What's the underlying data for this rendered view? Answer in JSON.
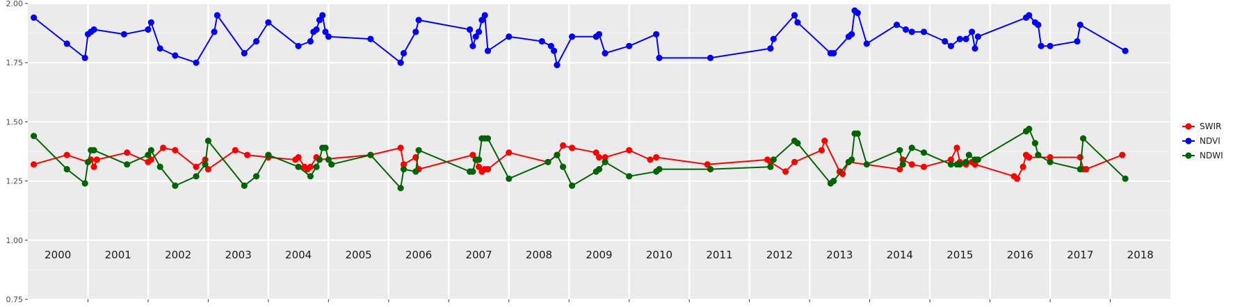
{
  "chart_data": {
    "type": "line",
    "title": "",
    "xlabel": "",
    "ylabel": "",
    "xlim": [
      2000.0,
      2019.0
    ],
    "ylim": [
      0.75,
      2.0
    ],
    "y_ticks": [
      "0.75",
      "1.00",
      "1.25",
      "1.50",
      "1.75",
      "2.00"
    ],
    "year_labels": [
      "2000",
      "2001",
      "2002",
      "2003",
      "2004",
      "2005",
      "2006",
      "2007",
      "2008",
      "2009",
      "2010",
      "2011",
      "2012",
      "2013",
      "2014",
      "2015",
      "2016",
      "2017",
      "2018"
    ],
    "grid": true,
    "legend_position": "right",
    "series": [
      {
        "name": "SWIR",
        "color": "#ff0000",
        "x": [
          2000.1,
          2000.65,
          2001.0,
          2001.05,
          2001.1,
          2001.15,
          2001.65,
          2002.0,
          2002.05,
          2002.25,
          2002.45,
          2002.8,
          2002.95,
          2003.0,
          2003.45,
          2003.65,
          2004.0,
          2004.45,
          2004.5,
          2004.6,
          2004.65,
          2004.7,
          2004.8,
          2004.85,
          2005.7,
          2006.2,
          2006.25,
          2006.45,
          2006.5,
          2007.4,
          2007.45,
          2007.5,
          2007.55,
          2007.6,
          2007.65,
          2008.0,
          2008.65,
          2008.8,
          2008.9,
          2009.05,
          2009.45,
          2009.5,
          2009.6,
          2010.0,
          2010.35,
          2010.45,
          2011.3,
          2012.3,
          2012.35,
          2012.6,
          2012.75,
          2013.2,
          2013.25,
          2013.5,
          2013.55,
          2013.65,
          2014.5,
          2014.55,
          2014.7,
          2014.9,
          2015.35,
          2015.45,
          2015.5,
          2015.6,
          2015.7,
          2015.75,
          2016.4,
          2016.45,
          2016.55,
          2016.6,
          2016.65,
          2017.0,
          2017.5,
          2017.55,
          2017.6,
          2018.2
        ],
        "values": [
          1.32,
          1.36,
          1.33,
          1.34,
          1.31,
          1.34,
          1.37,
          1.33,
          1.34,
          1.39,
          1.38,
          1.31,
          1.34,
          1.3,
          1.38,
          1.36,
          1.35,
          1.34,
          1.35,
          1.31,
          1.3,
          1.31,
          1.35,
          1.34,
          1.36,
          1.39,
          1.32,
          1.35,
          1.3,
          1.36,
          1.34,
          1.31,
          1.29,
          1.3,
          1.3,
          1.37,
          1.33,
          1.36,
          1.4,
          1.39,
          1.37,
          1.35,
          1.35,
          1.38,
          1.34,
          1.35,
          1.32,
          1.34,
          1.33,
          1.29,
          1.33,
          1.38,
          1.42,
          1.29,
          1.28,
          1.33,
          1.3,
          1.34,
          1.32,
          1.31,
          1.34,
          1.39,
          1.33,
          1.32,
          1.33,
          1.32,
          1.27,
          1.26,
          1.31,
          1.36,
          1.35,
          1.35,
          1.35,
          1.3,
          1.3,
          1.36
        ]
      },
      {
        "name": "NDVI",
        "color": "#0000ff",
        "x": [
          2000.1,
          2000.65,
          2000.95,
          2001.0,
          2001.05,
          2001.1,
          2001.6,
          2002.0,
          2002.05,
          2002.2,
          2002.45,
          2002.8,
          2003.1,
          2003.15,
          2003.6,
          2003.8,
          2004.0,
          2004.5,
          2004.7,
          2004.75,
          2004.8,
          2004.85,
          2004.9,
          2004.95,
          2005.0,
          2005.7,
          2006.2,
          2006.25,
          2006.45,
          2006.5,
          2007.35,
          2007.4,
          2007.45,
          2007.5,
          2007.55,
          2007.6,
          2007.65,
          2008.0,
          2008.55,
          2008.7,
          2008.75,
          2008.8,
          2009.05,
          2009.45,
          2009.5,
          2009.6,
          2010.0,
          2010.45,
          2010.5,
          2011.35,
          2012.35,
          2012.4,
          2012.75,
          2012.8,
          2013.35,
          2013.4,
          2013.65,
          2013.7,
          2013.75,
          2013.8,
          2013.95,
          2014.45,
          2014.6,
          2014.7,
          2014.9,
          2015.25,
          2015.35,
          2015.5,
          2015.6,
          2015.7,
          2015.75,
          2015.8,
          2016.6,
          2016.65,
          2016.75,
          2016.8,
          2016.85,
          2017.0,
          2017.45,
          2017.5,
          2018.25
        ],
        "values": [
          1.94,
          1.83,
          1.77,
          1.87,
          1.88,
          1.89,
          1.87,
          1.89,
          1.92,
          1.81,
          1.78,
          1.75,
          1.88,
          1.95,
          1.79,
          1.84,
          1.92,
          1.82,
          1.84,
          1.88,
          1.89,
          1.93,
          1.95,
          1.88,
          1.86,
          1.85,
          1.75,
          1.79,
          1.88,
          1.93,
          1.89,
          1.82,
          1.86,
          1.88,
          1.93,
          1.95,
          1.8,
          1.86,
          1.84,
          1.82,
          1.8,
          1.74,
          1.86,
          1.86,
          1.87,
          1.79,
          1.82,
          1.87,
          1.77,
          1.77,
          1.81,
          1.85,
          1.95,
          1.92,
          1.79,
          1.79,
          1.86,
          1.87,
          1.97,
          1.96,
          1.83,
          1.91,
          1.89,
          1.88,
          1.88,
          1.84,
          1.82,
          1.85,
          1.85,
          1.88,
          1.81,
          1.86,
          1.94,
          1.95,
          1.92,
          1.91,
          1.82,
          1.82,
          1.84,
          1.91,
          1.8
        ]
      },
      {
        "name": "NDWI",
        "color": "#006400",
        "x": [
          2000.1,
          2000.65,
          2000.95,
          2001.0,
          2001.05,
          2001.1,
          2001.65,
          2002.0,
          2002.05,
          2002.2,
          2002.45,
          2002.8,
          2002.95,
          2003.0,
          2003.6,
          2003.8,
          2004.0,
          2004.5,
          2004.7,
          2004.8,
          2004.85,
          2004.9,
          2004.95,
          2005.0,
          2005.05,
          2005.7,
          2006.2,
          2006.25,
          2006.45,
          2006.5,
          2007.35,
          2007.4,
          2007.45,
          2007.5,
          2007.55,
          2007.6,
          2007.65,
          2008.0,
          2008.65,
          2008.8,
          2008.9,
          2009.05,
          2009.45,
          2009.5,
          2009.6,
          2010.0,
          2010.45,
          2010.5,
          2011.35,
          2012.35,
          2012.4,
          2012.75,
          2012.8,
          2013.35,
          2013.4,
          2013.65,
          2013.7,
          2013.75,
          2013.8,
          2013.95,
          2014.5,
          2014.55,
          2014.7,
          2014.9,
          2015.35,
          2015.45,
          2015.5,
          2015.6,
          2015.65,
          2015.75,
          2015.8,
          2016.6,
          2016.65,
          2016.75,
          2016.8,
          2017.0,
          2017.5,
          2017.55,
          2018.25
        ],
        "values": [
          1.44,
          1.3,
          1.24,
          1.33,
          1.38,
          1.38,
          1.32,
          1.36,
          1.38,
          1.31,
          1.23,
          1.27,
          1.32,
          1.42,
          1.23,
          1.27,
          1.36,
          1.31,
          1.27,
          1.31,
          1.34,
          1.39,
          1.39,
          1.34,
          1.32,
          1.36,
          1.22,
          1.3,
          1.29,
          1.38,
          1.29,
          1.29,
          1.34,
          1.34,
          1.43,
          1.43,
          1.43,
          1.26,
          1.33,
          1.36,
          1.31,
          1.23,
          1.29,
          1.3,
          1.33,
          1.27,
          1.29,
          1.3,
          1.3,
          1.31,
          1.34,
          1.42,
          1.41,
          1.24,
          1.25,
          1.33,
          1.34,
          1.45,
          1.45,
          1.32,
          1.38,
          1.32,
          1.39,
          1.37,
          1.32,
          1.32,
          1.32,
          1.33,
          1.36,
          1.34,
          1.34,
          1.46,
          1.47,
          1.41,
          1.36,
          1.33,
          1.3,
          1.43,
          1.26
        ]
      }
    ]
  }
}
